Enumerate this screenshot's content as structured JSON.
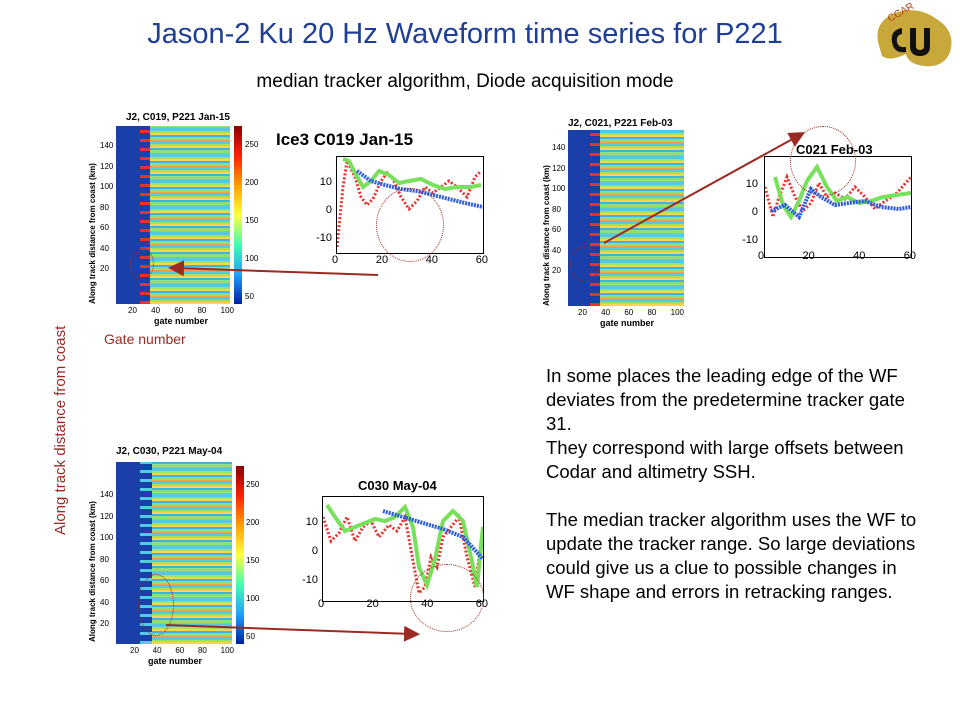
{
  "slide": {
    "title": "Jason-2 Ku 20 Hz  Waveform time series for P221",
    "subtitle": "median tracker algorithm, Diode acquisition mode",
    "logo_text": "CCAR",
    "side_label": "Along track distance from coast",
    "gate_label": "Gate number",
    "paragraphs": [
      "In some places the leading edge of the WF deviates from the predetermine tracker gate 31.",
      " They correspond with large offsets between Codar and altimetry SSH.",
      "The median tracker algorithm uses the WF to update the tracker range. So large deviations could give us a clue to possible changes in WF shape and errors in retracking ranges."
    ]
  },
  "heatmaps": [
    {
      "caption": "J2, C019,  P221  Jan-15",
      "ylabel": "Along track distance from coast (km)",
      "xlabel": "gate number",
      "yticks": [
        "140",
        "120",
        "100",
        "80",
        "60",
        "40",
        "20"
      ],
      "xticks": [
        "20",
        "40",
        "60",
        "80",
        "100"
      ],
      "cbar_ticks": [
        "250",
        "200",
        "150",
        "100",
        "50"
      ]
    },
    {
      "caption": "J2, C021,  P221  Feb-03",
      "ylabel": "Along track distance from coast (km)",
      "xlabel": "gate number",
      "yticks": [
        "140",
        "120",
        "100",
        "80",
        "60",
        "40",
        "20"
      ],
      "xticks": [
        "20",
        "40",
        "60",
        "80",
        "100"
      ],
      "cbar_ticks": []
    },
    {
      "caption": "J2, C030,  P221  May-04",
      "ylabel": "Along track distance from coast (km)",
      "xlabel": "gate number",
      "yticks": [
        "140",
        "120",
        "100",
        "80",
        "60",
        "40",
        "20"
      ],
      "xticks": [
        "20",
        "40",
        "60",
        "80",
        "100"
      ],
      "cbar_ticks": [
        "250",
        "200",
        "150",
        "100",
        "50"
      ]
    }
  ],
  "waveforms": [
    {
      "title": "Ice3 C019  Jan-15",
      "yticks": [
        "10",
        "0",
        "-10"
      ],
      "xticks": [
        "0",
        "20",
        "40",
        "60"
      ]
    },
    {
      "title": "C021  Feb-03",
      "yticks": [
        "10",
        "0",
        "-10"
      ],
      "xticks": [
        "0",
        "20",
        "40",
        "60"
      ]
    },
    {
      "title": "C030  May-04",
      "yticks": [
        "10",
        "0",
        "-10"
      ],
      "xticks": [
        "0",
        "20",
        "40",
        "60"
      ]
    }
  ],
  "colors": {
    "title": "#1f3e96",
    "arrow": "#9a2a22",
    "red": "#e8322c",
    "green": "#78e05a",
    "blue": "#2a5ae0",
    "navy": "#1f3e96"
  }
}
